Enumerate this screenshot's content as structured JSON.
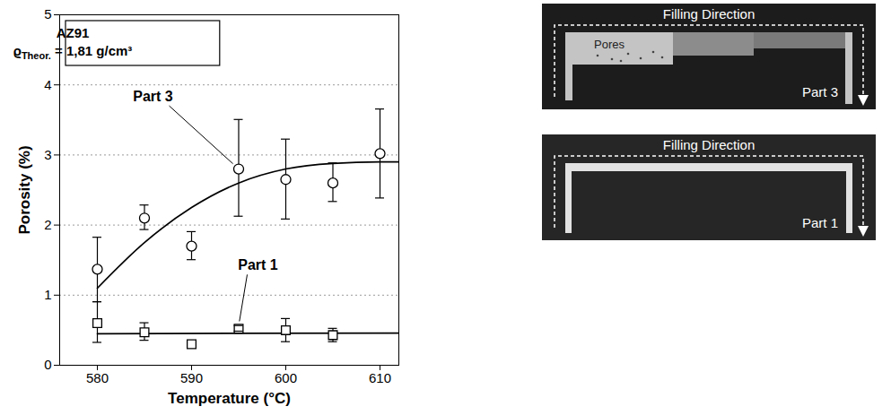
{
  "chart_data": {
    "type": "scatter",
    "box_title": "AZ91",
    "box_text": {
      "symbol": "ϱ",
      "subscript": "Theor.",
      "text": " = 1,81 g/cm³"
    },
    "x_label": "Temperature (°C)",
    "y_label": "Porosity (%)",
    "xlim": [
      576,
      612
    ],
    "xticks": [
      580,
      590,
      600,
      610
    ],
    "ylim": [
      0,
      5
    ],
    "yticks": [
      0,
      1,
      2,
      3,
      4,
      5
    ],
    "grid": true,
    "series": [
      {
        "name": "Part 3",
        "color": "#000000",
        "marker": "circle",
        "x": [
          580,
          585,
          590,
          595,
          600,
          605,
          610
        ],
        "values": [
          1.37,
          2.1,
          1.7,
          2.8,
          2.65,
          2.6,
          3.02
        ],
        "error_low": [
          0.9,
          1.93,
          1.5,
          2.12,
          2.08,
          2.33,
          2.38
        ],
        "error_high": [
          1.82,
          2.28,
          1.9,
          3.5,
          3.22,
          2.88,
          3.65
        ],
        "fit": {
          "x": [
            580,
            585,
            590,
            595,
            600,
            605,
            610,
            612
          ],
          "values": [
            1.1,
            1.75,
            2.25,
            2.6,
            2.8,
            2.88,
            2.9,
            2.9
          ]
        }
      },
      {
        "name": "Part 1",
        "color": "#000000",
        "marker": "square",
        "x": [
          580,
          585,
          590,
          595,
          600,
          605
        ],
        "values": [
          0.6,
          0.47,
          0.3,
          0.52,
          0.5,
          0.43
        ],
        "error_low": [
          0.32,
          0.35,
          null,
          0.48,
          0.33,
          0.33
        ],
        "error_high": [
          0.9,
          0.6,
          null,
          0.56,
          0.66,
          0.52
        ],
        "fit": {
          "x": [
            580,
            612
          ],
          "values": [
            0.45,
            0.46
          ]
        }
      }
    ]
  },
  "photos": [
    {
      "label": "Part 3",
      "direction_label": "Filling Direction",
      "feature_label": "Pores"
    },
    {
      "label": "Part 1",
      "direction_label": "Filling Direction"
    }
  ]
}
